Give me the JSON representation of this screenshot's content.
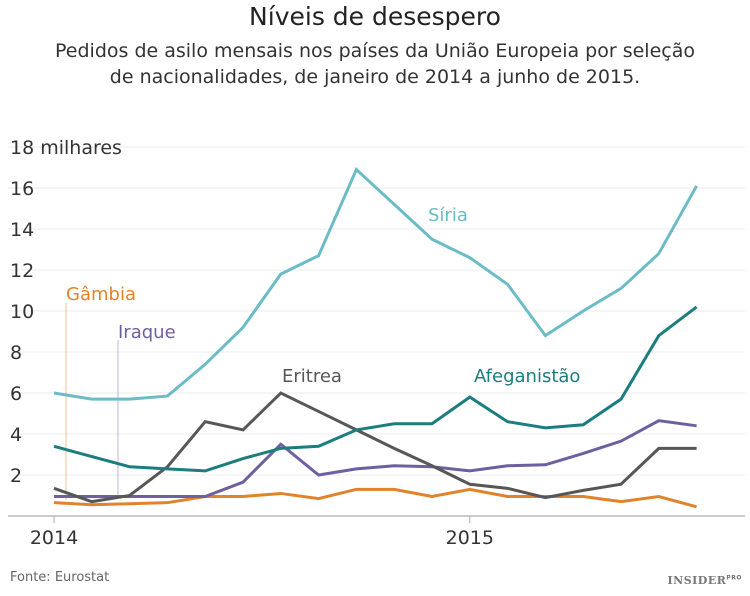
{
  "title": "Níveis de desespero",
  "subtitle_lines": [
    "Pedidos de asilo mensais nos países da União Europeia por seleção",
    "de nacionalidades, de janeiro de 2014 a junho de 2015."
  ],
  "footer": {
    "source": "Fonte: Eurostat",
    "logo": "INSIDER",
    "logo_sup": "PRO"
  },
  "chart_data": {
    "type": "line",
    "title": "Níveis de desespero",
    "ylabel": "18 milhares",
    "ylim": [
      0,
      18
    ],
    "yticks": [
      2,
      4,
      6,
      8,
      10,
      12,
      14,
      16,
      18
    ],
    "ytick_labels": [
      "2",
      "4",
      "6",
      "8",
      "10",
      "12",
      "14",
      "16",
      "18 milhares"
    ],
    "grid": true,
    "x": [
      "2014-01",
      "2014-02",
      "2014-03",
      "2014-04",
      "2014-05",
      "2014-06",
      "2014-07",
      "2014-08",
      "2014-09",
      "2014-10",
      "2014-11",
      "2014-12",
      "2015-01",
      "2015-02",
      "2015-03",
      "2015-04",
      "2015-05",
      "2015-06"
    ],
    "xticks": [
      {
        "label": "2014",
        "index": 0
      },
      {
        "label": "2015",
        "index": 11
      }
    ],
    "series": [
      {
        "name": "Síria",
        "color": "#6bbcc6",
        "values": [
          6.0,
          5.7,
          5.7,
          5.85,
          7.4,
          9.2,
          11.8,
          12.7,
          16.9,
          15.2,
          13.5,
          12.6,
          11.3,
          8.8,
          10.0,
          11.1,
          12.8,
          16.1
        ]
      },
      {
        "name": "Afeganistão",
        "color": "#1b7d7e",
        "values": [
          3.4,
          2.9,
          2.4,
          2.3,
          2.2,
          2.8,
          3.3,
          3.4,
          4.2,
          4.5,
          4.5,
          5.8,
          4.6,
          4.3,
          4.45,
          5.7,
          8.8,
          10.2
        ]
      },
      {
        "name": "Eritrea",
        "color": "#575757",
        "values": [
          1.35,
          0.7,
          1.0,
          2.4,
          4.6,
          4.2,
          6.0,
          5.1,
          4.2,
          3.3,
          2.45,
          1.55,
          1.35,
          0.9,
          1.25,
          1.55,
          3.3,
          3.3
        ]
      },
      {
        "name": "Iraque",
        "color": "#6e5f9e",
        "values": [
          0.95,
          0.95,
          0.95,
          0.95,
          0.95,
          1.65,
          3.5,
          2.0,
          2.3,
          2.45,
          2.4,
          2.2,
          2.45,
          2.5,
          3.05,
          3.65,
          4.65,
          4.4
        ]
      },
      {
        "name": "Gâmbia",
        "color": "#e0832a",
        "values": [
          0.65,
          0.55,
          0.6,
          0.65,
          0.95,
          0.95,
          1.1,
          0.85,
          1.3,
          1.3,
          0.95,
          1.3,
          0.95,
          0.95,
          0.95,
          0.7,
          0.95,
          0.45
        ]
      }
    ]
  }
}
